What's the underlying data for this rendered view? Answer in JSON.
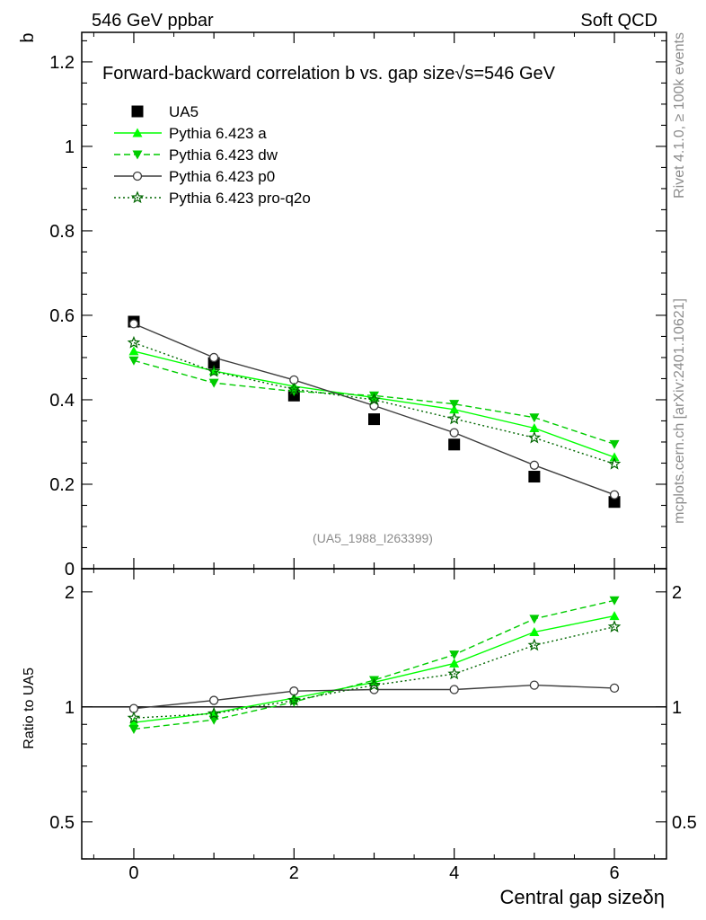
{
  "header": {
    "left": "546 GeV ppbar",
    "right": "Soft QCD"
  },
  "side_text": {
    "rivet": "Rivet 4.1.0, ≥ 100k events",
    "mcplots": "mcplots.cern.ch [arXiv:2401.10621]"
  },
  "chart_data": [
    {
      "type": "scatter",
      "title": "Forward-backward correlation b  vs. gap size√s=546 GeV",
      "ylabel": "b",
      "xlabel": "",
      "xlim": [
        -0.65,
        6.65
      ],
      "ylim": [
        0,
        1.27
      ],
      "yticks": [
        0,
        0.2,
        0.4,
        0.6,
        0.8,
        1,
        1.2
      ],
      "ytick_labels": [
        "0",
        "0.2",
        "0.4",
        "0.6",
        "0.8",
        "1",
        "1.2"
      ],
      "analysis_label": "(UA5_1988_I263399)",
      "x": [
        0,
        1,
        2,
        3,
        4,
        5,
        6
      ],
      "series": [
        {
          "name": "UA5",
          "marker": "square",
          "color": "#000000",
          "dash": "none",
          "values": [
            0.585,
            0.487,
            0.41,
            0.354,
            0.294,
            0.218,
            0.158
          ]
        },
        {
          "name": "Pythia 6.423 a",
          "marker": "triangle-up",
          "color": "#00ff00",
          "dash": "solid",
          "values": [
            0.515,
            0.468,
            0.432,
            0.405,
            0.377,
            0.333,
            0.264
          ]
        },
        {
          "name": "Pythia 6.423 dw",
          "marker": "triangle-down",
          "color": "#00cc00",
          "dash": "dashed",
          "values": [
            0.493,
            0.44,
            0.42,
            0.41,
            0.39,
            0.358,
            0.295
          ]
        },
        {
          "name": "Pythia 6.423 p0",
          "marker": "circle",
          "color": "#3c3c3c",
          "dash": "solid",
          "values": [
            0.58,
            0.5,
            0.447,
            0.386,
            0.322,
            0.245,
            0.175
          ]
        },
        {
          "name": "Pythia 6.423 pro-q2o",
          "marker": "star",
          "color": "#006600",
          "dash": "dotted",
          "values": [
            0.535,
            0.467,
            0.425,
            0.4,
            0.355,
            0.31,
            0.248
          ]
        }
      ]
    },
    {
      "type": "line",
      "title": "",
      "ylabel": "Ratio to UA5",
      "xlabel": "Central gap sizeδη",
      "xlim": [
        -0.65,
        6.65
      ],
      "ylim": [
        0.4,
        2.3
      ],
      "yscale": "log",
      "yticks": [
        0.5,
        1,
        2
      ],
      "ytick_labels": [
        "0.5",
        "1",
        "2"
      ],
      "xticks": [
        0,
        2,
        4,
        6
      ],
      "xtick_labels": [
        "0",
        "2",
        "4",
        "6"
      ],
      "x": [
        0,
        1,
        2,
        3,
        4,
        5,
        6
      ],
      "series": [
        {
          "name": "Pythia 6.423 a",
          "values": [
            0.91,
            0.965,
            1.055,
            1.16,
            1.3,
            1.57,
            1.73
          ]
        },
        {
          "name": "Pythia 6.423 dw",
          "values": [
            0.875,
            0.925,
            1.03,
            1.175,
            1.37,
            1.7,
            1.9
          ]
        },
        {
          "name": "Pythia 6.423 p0",
          "values": [
            0.99,
            1.04,
            1.1,
            1.11,
            1.11,
            1.14,
            1.12
          ]
        },
        {
          "name": "Pythia 6.423 pro-q2o",
          "values": [
            0.935,
            0.96,
            1.04,
            1.14,
            1.22,
            1.45,
            1.62
          ]
        }
      ]
    }
  ]
}
